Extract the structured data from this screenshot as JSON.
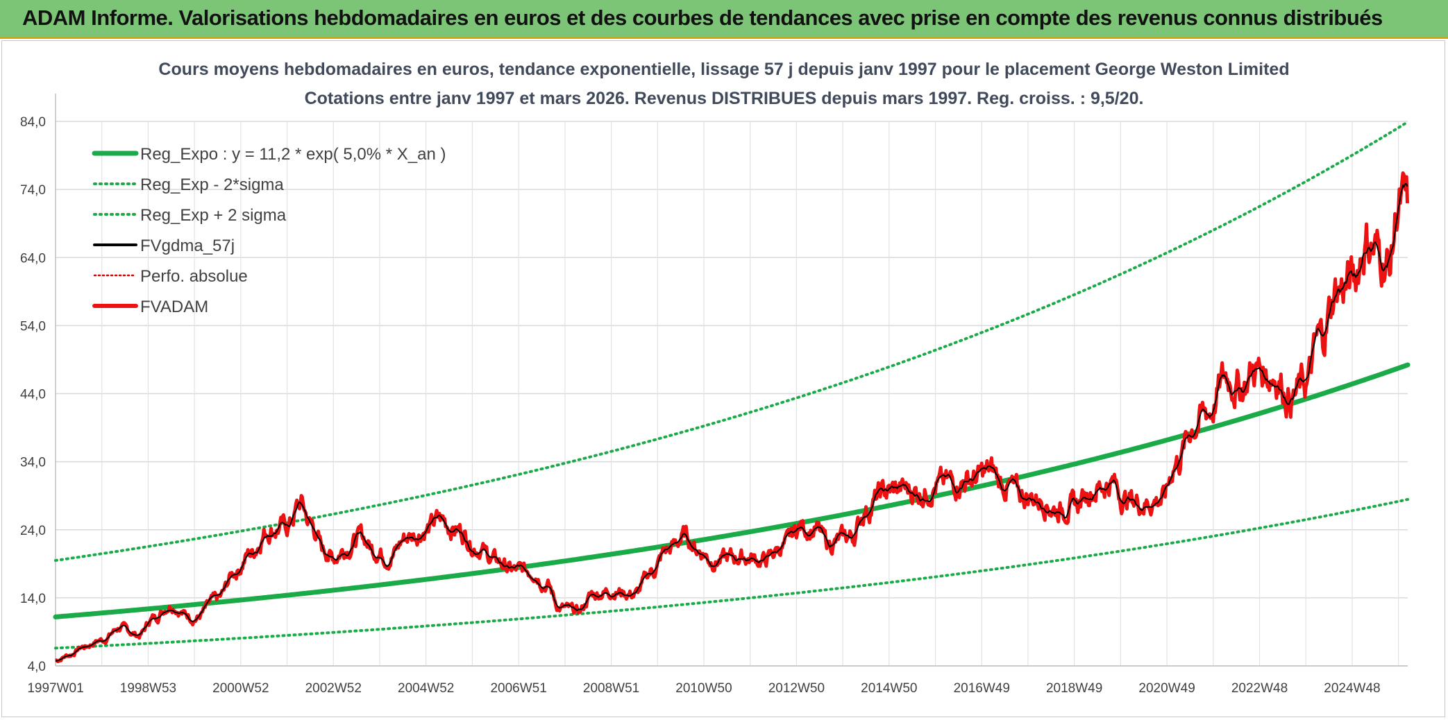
{
  "banner": {
    "title": "ADAM Informe. Valorisations hebdomadaires en euros et des courbes de tendances avec prise en compte des revenus connus distribués"
  },
  "chart_data": {
    "type": "line",
    "title": "Cours moyens hebdomadaires en euros, tendance exponentielle, lissage 57 j depuis janv 1997 pour le placement George Weston Limited",
    "subtitle": "Cotations entre janv 1997 et mars 2026. Revenus DISTRIBUES depuis mars 1997. Reg. croiss. : 9,5/20.",
    "xlabel": "",
    "ylabel": "",
    "x_ticks": [
      "1997W01",
      "1998W53",
      "2000W52",
      "2002W52",
      "2004W52",
      "2006W51",
      "2008W51",
      "2010W50",
      "2012W50",
      "2014W50",
      "2016W49",
      "2018W49",
      "2020W49",
      "2022W48",
      "2024W48"
    ],
    "y_ticks": [
      "4,0",
      "14,0",
      "24,0",
      "34,0",
      "44,0",
      "54,0",
      "64,0",
      "74,0",
      "84,0"
    ],
    "xlim": [
      1997.0,
      2026.2
    ],
    "ylim": [
      4,
      84
    ],
    "grid": true,
    "legend_position": "top-left",
    "series": [
      {
        "name": "Reg_Expo : y = 11,2 * exp( 5,0% *  X_an )",
        "color": "#1aaa48",
        "style": "solid-thick",
        "model": {
          "a": 11.2,
          "b": 0.05,
          "factor": 1.0
        }
      },
      {
        "name": "Reg_Exp - 2*sigma",
        "color": "#1aaa48",
        "style": "dotted",
        "model": {
          "a": 11.2,
          "b": 0.05,
          "factor": 0.59
        }
      },
      {
        "name": "Reg_Exp + 2 sigma",
        "color": "#1aaa48",
        "style": "dotted",
        "model": {
          "a": 11.2,
          "b": 0.05,
          "factor": 1.74
        }
      },
      {
        "name": "FVgdma_57j",
        "color": "#000000",
        "style": "solid"
      },
      {
        "name": "Perfo. absolue",
        "color": "#d00000",
        "style": "dotted-thin"
      },
      {
        "name": "FVADAM",
        "color": "#ee1111",
        "style": "solid-thick"
      }
    ],
    "price_points": [
      [
        1997.0,
        4.8
      ],
      [
        1997.3,
        5.6
      ],
      [
        1997.6,
        6.8
      ],
      [
        1998.0,
        7.8
      ],
      [
        1998.4,
        9.6
      ],
      [
        1998.8,
        8.5
      ],
      [
        1999.1,
        11.0
      ],
      [
        1999.5,
        13.0
      ],
      [
        1999.8,
        11.6
      ],
      [
        2000.0,
        11.0
      ],
      [
        2000.5,
        13.8
      ],
      [
        2000.9,
        18.0
      ],
      [
        2001.2,
        20.5
      ],
      [
        2001.6,
        24.0
      ],
      [
        2002.0,
        24.5
      ],
      [
        2002.3,
        27.8
      ],
      [
        2002.5,
        25.0
      ],
      [
        2002.8,
        21.0
      ],
      [
        2003.0,
        20.0
      ],
      [
        2003.3,
        21.5
      ],
      [
        2003.6,
        23.0
      ],
      [
        2003.9,
        21.0
      ],
      [
        2004.2,
        20.0
      ],
      [
        2004.6,
        23.0
      ],
      [
        2005.0,
        24.0
      ],
      [
        2005.3,
        25.5
      ],
      [
        2005.7,
        24.0
      ],
      [
        2006.1,
        21.5
      ],
      [
        2006.5,
        19.5
      ],
      [
        2006.9,
        18.0
      ],
      [
        2007.3,
        18.0
      ],
      [
        2007.6,
        16.0
      ],
      [
        2007.9,
        12.5
      ],
      [
        2008.3,
        12.0
      ],
      [
        2008.6,
        14.5
      ],
      [
        2009.0,
        15.0
      ],
      [
        2009.5,
        14.5
      ],
      [
        2009.9,
        18.0
      ],
      [
        2010.2,
        21.0
      ],
      [
        2010.6,
        23.0
      ],
      [
        2010.9,
        21.0
      ],
      [
        2011.2,
        19.5
      ],
      [
        2011.8,
        20.0
      ],
      [
        2012.3,
        19.5
      ],
      [
        2012.7,
        21.5
      ],
      [
        2013.1,
        24.5
      ],
      [
        2013.4,
        24.0
      ],
      [
        2013.7,
        22.0
      ],
      [
        2014.2,
        23.0
      ],
      [
        2014.5,
        27.0
      ],
      [
        2014.9,
        29.5
      ],
      [
        2015.3,
        30.0
      ],
      [
        2015.7,
        29.5
      ],
      [
        2016.0,
        30.5
      ],
      [
        2016.4,
        31.0
      ],
      [
        2016.8,
        31.5
      ],
      [
        2017.2,
        32.5
      ],
      [
        2017.5,
        30.5
      ],
      [
        2017.9,
        29.0
      ],
      [
        2018.3,
        28.5
      ],
      [
        2018.6,
        27.0
      ],
      [
        2019.0,
        27.5
      ],
      [
        2019.4,
        30.0
      ],
      [
        2019.8,
        31.0
      ],
      [
        2020.1,
        28.5
      ],
      [
        2020.5,
        28.0
      ],
      [
        2020.9,
        28.5
      ],
      [
        2021.2,
        34.0
      ],
      [
        2021.6,
        39.5
      ],
      [
        2021.9,
        41.5
      ],
      [
        2022.3,
        46.5
      ],
      [
        2022.6,
        45.0
      ],
      [
        2022.9,
        47.5
      ],
      [
        2023.3,
        47.0
      ],
      [
        2023.7,
        43.5
      ],
      [
        2024.0,
        45.5
      ],
      [
        2024.3,
        52.0
      ],
      [
        2024.7,
        59.5
      ],
      [
        2025.0,
        60.5
      ],
      [
        2025.3,
        66.5
      ],
      [
        2025.6,
        64.5
      ],
      [
        2025.8,
        63.0
      ],
      [
        2026.0,
        71.5
      ],
      [
        2026.2,
        71.0
      ]
    ]
  }
}
